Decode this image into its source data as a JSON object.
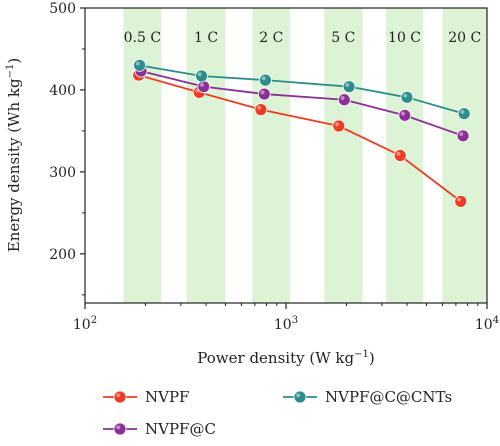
{
  "chart_data": {
    "type": "line",
    "title": "",
    "xlabel": "Power density (W kg",
    "xlabel_sup": "−1",
    "xlabel_suffix": ")",
    "ylabel": "Energy density (Wh kg",
    "ylabel_sup": "−1",
    "ylabel_suffix": ")",
    "x_scale": "log",
    "xlim": [
      100,
      10000
    ],
    "ylim": [
      140,
      500
    ],
    "y_ticks": [
      200,
      300,
      400,
      500
    ],
    "x_tick_labels": [
      {
        "value": 100,
        "base": "10",
        "exp": "2"
      },
      {
        "value": 1000,
        "base": "10",
        "exp": "3"
      },
      {
        "value": 10000,
        "base": "10",
        "exp": "4"
      }
    ],
    "c_rate_bands": [
      {
        "label": "0.5 C",
        "x_from": 155,
        "x_to": 240
      },
      {
        "label": "1 C",
        "x_from": 320,
        "x_to": 500
      },
      {
        "label": "2 C",
        "x_from": 680,
        "x_to": 1050
      },
      {
        "label": "5 C",
        "x_from": 1550,
        "x_to": 2400
      },
      {
        "label": "10 C",
        "x_from": 3150,
        "x_to": 4800
      },
      {
        "label": "20 C",
        "x_from": 6000,
        "x_to": 10000
      }
    ],
    "band_color": "#ddf3d6",
    "series": [
      {
        "name": "NVPF",
        "color": "#ee3b22",
        "x": [
          185,
          370,
          750,
          1830,
          3700,
          7400
        ],
        "y": [
          418,
          397,
          376,
          356,
          320,
          264
        ]
      },
      {
        "name": "NVPF@C",
        "color": "#8c2f96",
        "x": [
          190,
          390,
          780,
          1950,
          3900,
          7600
        ],
        "y": [
          423,
          404,
          395,
          388,
          369,
          344
        ]
      },
      {
        "name": "NVPF@C@CNTs",
        "color": "#2d8c8c",
        "x": [
          187,
          380,
          790,
          2060,
          4000,
          7700
        ],
        "y": [
          430,
          417,
          412,
          404,
          391,
          371
        ]
      }
    ],
    "legend_position": "bottom"
  }
}
